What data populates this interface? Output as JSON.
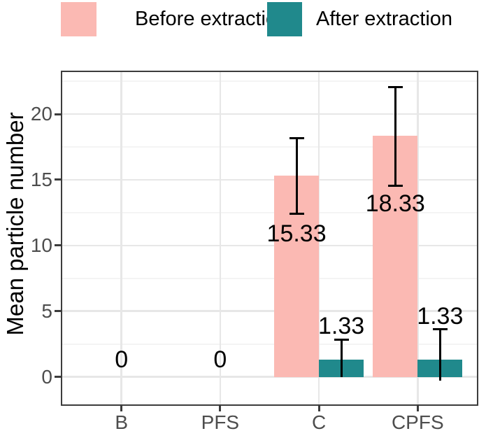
{
  "legend": {
    "items": [
      {
        "label": "Before extraction",
        "color": "#FBB9B3"
      },
      {
        "label": "After extraction",
        "color": "#20898C"
      }
    ]
  },
  "chart_data": {
    "type": "bar",
    "title": "",
    "xlabel": "",
    "ylabel": "Mean particle number",
    "categories": [
      "B",
      "PFS",
      "C",
      "CPFS"
    ],
    "series": [
      {
        "name": "Before extraction",
        "color": "#FBB9B3",
        "values": [
          0,
          0,
          15.33,
          18.33
        ]
      },
      {
        "name": "After extraction",
        "color": "#20898C",
        "values": [
          0,
          0,
          1.33,
          1.33
        ]
      }
    ],
    "error_bars": [
      {
        "series": 0,
        "category": "C",
        "low": 12.4,
        "high": 18.2,
        "cap_low": true,
        "cap_high": true
      },
      {
        "series": 0,
        "category": "CPFS",
        "low": 14.5,
        "high": 22.1,
        "cap_low": true,
        "cap_high": true
      },
      {
        "series": 1,
        "category": "C",
        "low": 0,
        "high": 2.85,
        "cap_low": false,
        "cap_high": true
      },
      {
        "series": 1,
        "category": "CPFS",
        "low": -0.3,
        "high": 3.65,
        "cap_low": false,
        "cap_high": true
      }
    ],
    "value_labels": [
      {
        "text": "0",
        "category": "B",
        "series": null,
        "y": 1.3
      },
      {
        "text": "0",
        "category": "PFS",
        "series": null,
        "y": 1.3
      },
      {
        "text": "15.33",
        "category": "C",
        "series": 0,
        "y": 10.9
      },
      {
        "text": "18.33",
        "category": "CPFS",
        "series": 0,
        "y": 13.2
      },
      {
        "text": "1.33",
        "category": "C",
        "series": 1,
        "y": 3.85
      },
      {
        "text": "1.33",
        "category": "CPFS",
        "series": 1,
        "y": 4.6
      }
    ],
    "y_axis": {
      "ticks": [
        0,
        5,
        10,
        15,
        20
      ],
      "minor_ticks": [
        2.5,
        7.5,
        12.5,
        17.5,
        22.5
      ],
      "lim": [
        -2.1,
        23.2
      ]
    },
    "grid": {
      "horizontal_major": true,
      "horizontal_minor": true,
      "vertical_major": true
    },
    "legend_position": "top"
  }
}
